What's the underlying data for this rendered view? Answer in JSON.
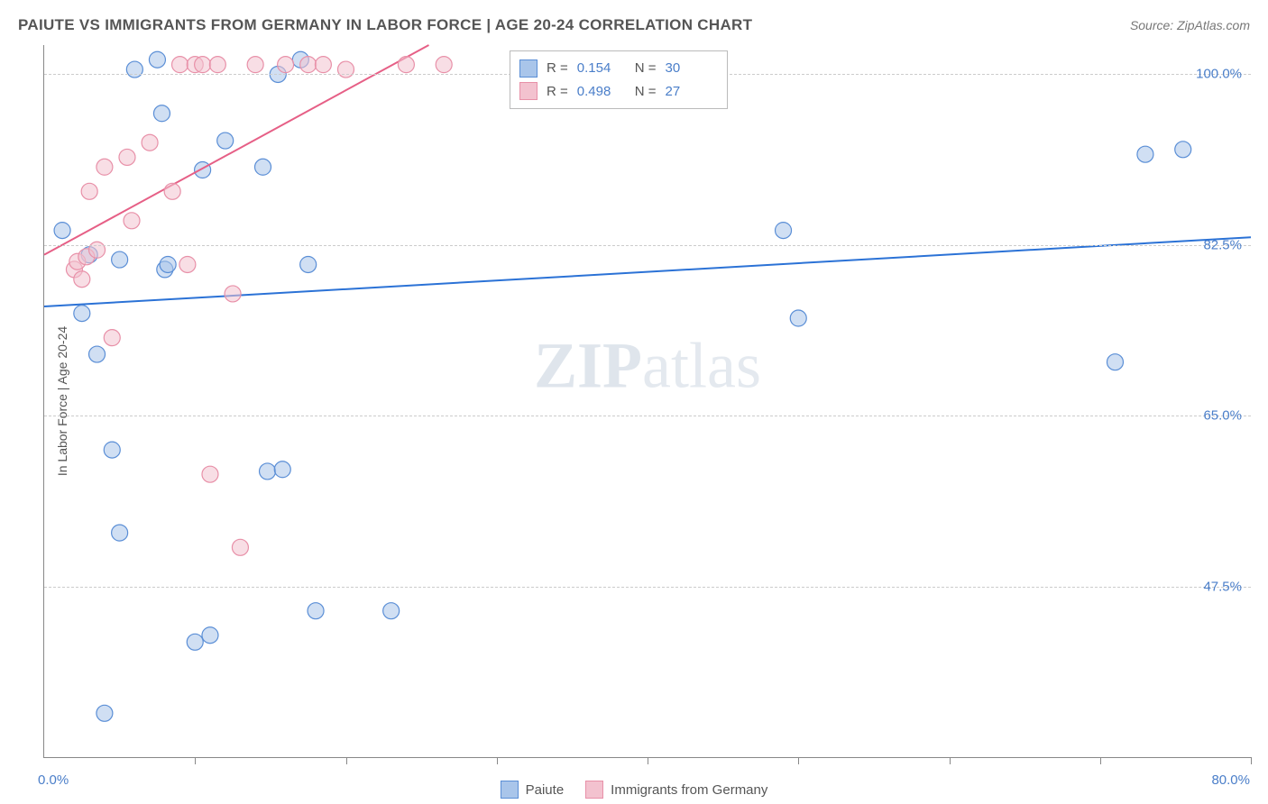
{
  "header": {
    "title": "PAIUTE VS IMMIGRANTS FROM GERMANY IN LABOR FORCE | AGE 20-24 CORRELATION CHART",
    "source": "Source: ZipAtlas.com"
  },
  "chart": {
    "type": "scatter",
    "background_color": "#ffffff",
    "grid_color": "#cccccc",
    "axis_color": "#888888",
    "yaxis_title": "In Labor Force | Age 20-24",
    "yaxis_title_fontsize": 14,
    "tick_label_color": "#4a7ec9",
    "tick_label_fontsize": 15,
    "xlim": [
      0,
      80
    ],
    "ylim": [
      30,
      103
    ],
    "xticks": [
      10,
      20,
      30,
      40,
      50,
      60,
      70,
      80
    ],
    "xaxis_min_label": "0.0%",
    "xaxis_max_label": "80.0%",
    "yticks": [
      {
        "v": 47.5,
        "label": "47.5%"
      },
      {
        "v": 65.0,
        "label": "65.0%"
      },
      {
        "v": 82.5,
        "label": "82.5%"
      },
      {
        "v": 100.0,
        "label": "100.0%"
      }
    ],
    "marker_radius": 9,
    "marker_opacity": 0.55,
    "line_width": 2,
    "series": [
      {
        "name": "Paiute",
        "color_stroke": "#5a8ed6",
        "color_fill": "#a9c5ea",
        "trend_line_color": "#2b72d6",
        "trend": {
          "x1": 0,
          "y1": 76.2,
          "x2": 80,
          "y2": 83.3
        },
        "points": [
          [
            1.2,
            84.0
          ],
          [
            2.5,
            75.5
          ],
          [
            3.5,
            71.3
          ],
          [
            5.0,
            81.0
          ],
          [
            6.0,
            100.5
          ],
          [
            7.5,
            101.5
          ],
          [
            7.8,
            96.0
          ],
          [
            8.0,
            80.0
          ],
          [
            8.2,
            80.5
          ],
          [
            12.0,
            93.2
          ],
          [
            10.5,
            90.2
          ],
          [
            14.5,
            90.5
          ],
          [
            15.5,
            100.0
          ],
          [
            17.0,
            101.5
          ],
          [
            17.5,
            80.5
          ],
          [
            5.0,
            53.0
          ],
          [
            4.5,
            61.5
          ],
          [
            10.0,
            41.8
          ],
          [
            11.0,
            42.5
          ],
          [
            14.8,
            59.3
          ],
          [
            15.8,
            59.5
          ],
          [
            18.0,
            45.0
          ],
          [
            23.0,
            45.0
          ],
          [
            4.0,
            34.5
          ],
          [
            50.0,
            75.0
          ],
          [
            49.0,
            84.0
          ],
          [
            73.0,
            91.8
          ],
          [
            75.5,
            92.3
          ],
          [
            71.0,
            70.5
          ],
          [
            3.0,
            81.5
          ]
        ]
      },
      {
        "name": "Immigrants from Germany",
        "color_stroke": "#e890a8",
        "color_fill": "#f3c2cf",
        "trend_line_color": "#e65f86",
        "trend": {
          "x1": 0,
          "y1": 81.5,
          "x2": 25.5,
          "y2": 103
        },
        "points": [
          [
            2.0,
            80.0
          ],
          [
            2.2,
            80.8
          ],
          [
            2.5,
            79.0
          ],
          [
            2.8,
            81.3
          ],
          [
            3.0,
            88.0
          ],
          [
            3.5,
            82.0
          ],
          [
            4.0,
            90.5
          ],
          [
            4.5,
            73.0
          ],
          [
            5.5,
            91.5
          ],
          [
            5.8,
            85.0
          ],
          [
            7.0,
            93.0
          ],
          [
            8.5,
            88.0
          ],
          [
            9.0,
            101.0
          ],
          [
            9.5,
            80.5
          ],
          [
            10.0,
            101.0
          ],
          [
            10.5,
            101.0
          ],
          [
            11.5,
            101.0
          ],
          [
            12.5,
            77.5
          ],
          [
            14.0,
            101.0
          ],
          [
            16.0,
            101.0
          ],
          [
            17.5,
            101.0
          ],
          [
            18.5,
            101.0
          ],
          [
            20.0,
            100.5
          ],
          [
            24.0,
            101.0
          ],
          [
            26.5,
            101.0
          ],
          [
            11.0,
            59.0
          ],
          [
            13.0,
            51.5
          ]
        ]
      }
    ]
  },
  "stats_box": {
    "rows": [
      {
        "swatch_fill": "#a9c5ea",
        "swatch_stroke": "#5a8ed6",
        "r_label": "R =",
        "r_value": "0.154",
        "n_label": "N =",
        "n_value": "30"
      },
      {
        "swatch_fill": "#f3c2cf",
        "swatch_stroke": "#e890a8",
        "r_label": "R =",
        "r_value": "0.498",
        "n_label": "N =",
        "n_value": "27"
      }
    ]
  },
  "bottom_legend": [
    {
      "swatch_fill": "#a9c5ea",
      "swatch_stroke": "#5a8ed6",
      "label": "Paiute"
    },
    {
      "swatch_fill": "#f3c2cf",
      "swatch_stroke": "#e890a8",
      "label": "Immigrants from Germany"
    }
  ],
  "watermark": {
    "bold": "ZIP",
    "rest": "atlas"
  }
}
